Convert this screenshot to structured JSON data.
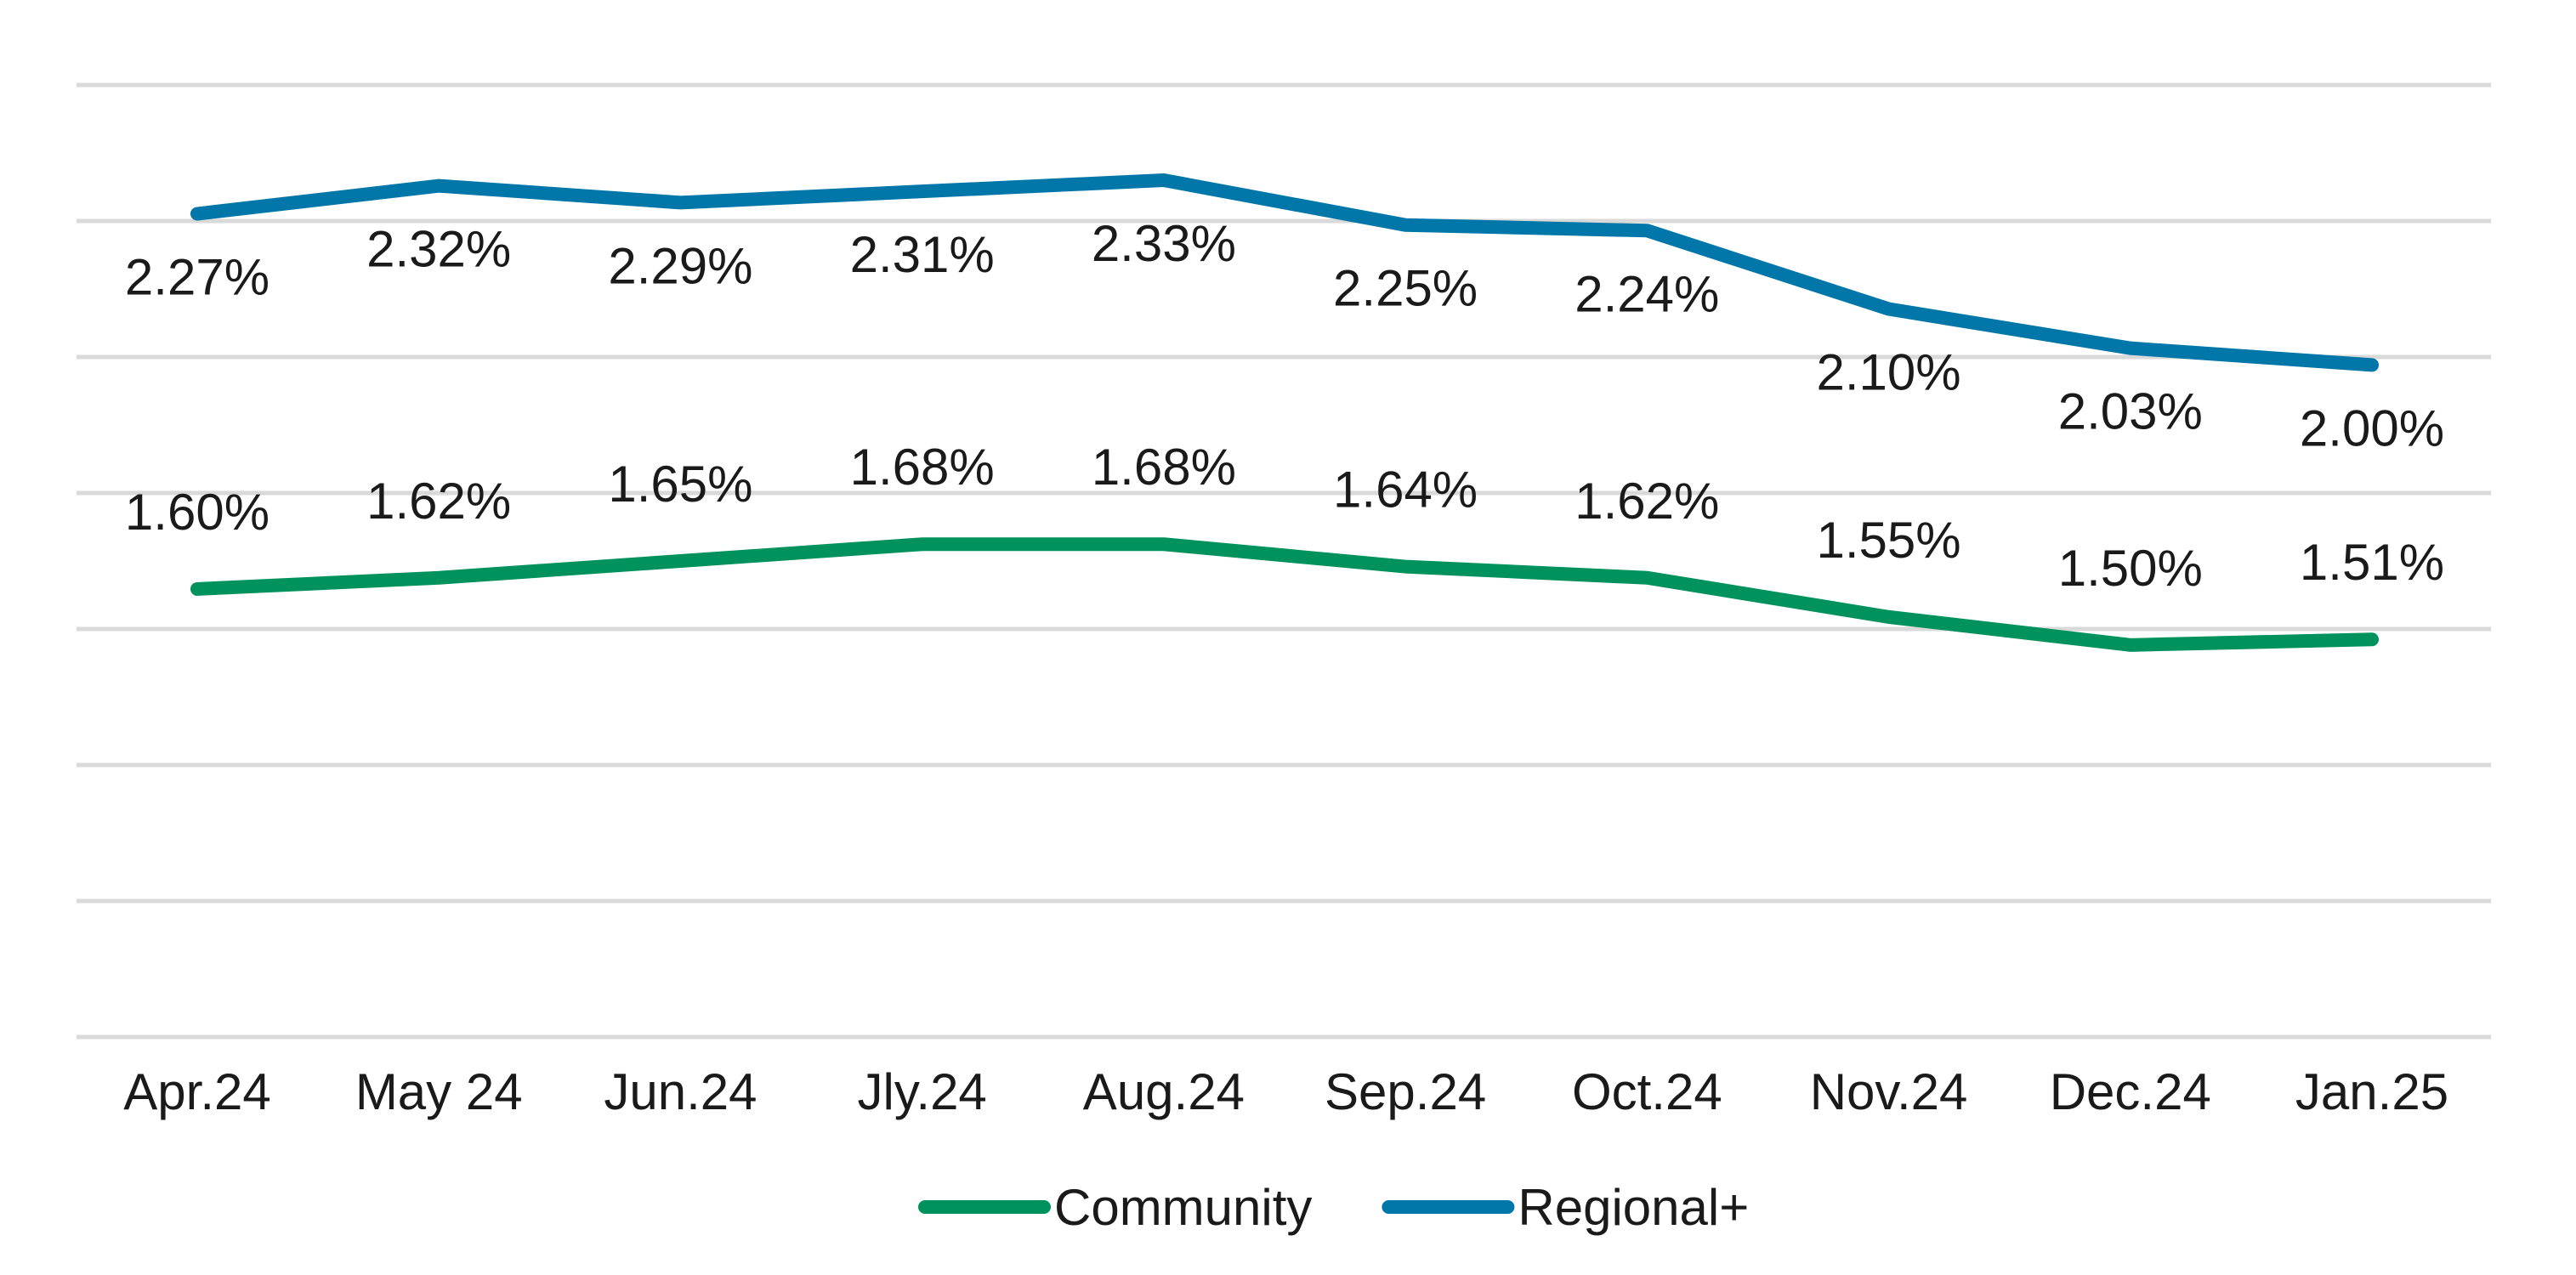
{
  "chart_data": {
    "type": "line",
    "title": "",
    "xlabel": "",
    "ylabel": "",
    "categories": [
      "Apr.24",
      "May 24",
      "Jun.24",
      "Jly.24",
      "Aug.24",
      "Sep.24",
      "Oct.24",
      "Nov.24",
      "Dec.24",
      "Jan.25"
    ],
    "ylim": [
      0.8,
      2.5
    ],
    "y_axis_labels_shown": false,
    "grid": true,
    "legend_position": "bottom",
    "series": [
      {
        "name": "Community",
        "color": "#00925c",
        "values": [
          1.6,
          1.62,
          1.65,
          1.68,
          1.68,
          1.64,
          1.62,
          1.55,
          1.5,
          1.51
        ],
        "labels": [
          "1.60%",
          "1.62%",
          "1.65%",
          "1.68%",
          "1.68%",
          "1.64%",
          "1.62%",
          "1.55%",
          "1.50%",
          "1.51%"
        ],
        "label_position": "above"
      },
      {
        "name": "Regional+",
        "color": "#0077a8",
        "values": [
          2.27,
          2.32,
          2.29,
          2.31,
          2.33,
          2.25,
          2.24,
          2.1,
          2.03,
          2.0
        ],
        "labels": [
          "2.27%",
          "2.32%",
          "2.29%",
          "2.31%",
          "2.33%",
          "2.25%",
          "2.24%",
          "2.10%",
          "2.03%",
          "2.00%"
        ],
        "label_position": "below"
      }
    ]
  }
}
